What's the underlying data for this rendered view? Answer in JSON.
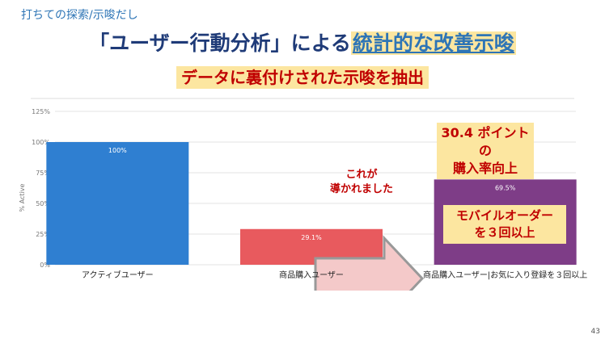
{
  "slide": {
    "subtitle": "打ちての探索/示唆だし",
    "headline_part1": "「ユーザー行動分析」による",
    "headline_part2": "統計的な改善示唆",
    "subheadline": "データに裏付けされた示唆を抽出",
    "page_number": "43"
  },
  "callouts": {
    "top_line1": "30.4 ポイントの",
    "top_line2": "購入率向上",
    "arrow_line1": "これが",
    "arrow_line2": "導かれました",
    "bottom_line1": "モバイルオーダー",
    "bottom_line2": "を３回以上"
  },
  "colors": {
    "bar1": "#2f7fd1",
    "bar2": "#e85a5e",
    "bar3": "#7e3d87",
    "arrow_fill": "#f4c9c9",
    "arrow_stroke": "#999999",
    "highlight": "#fce6a0",
    "accent_red": "#c00000"
  },
  "chart_data": {
    "type": "bar",
    "categories": [
      "アクティブユーザー",
      "商品購入ユーザー",
      "商品購入ユーザー|お気に入り登録を３回以上"
    ],
    "values": [
      100,
      29.1,
      69.5
    ],
    "data_labels": [
      "100%",
      "29.1%",
      "69.5%"
    ],
    "ylabel": "% Active",
    "yticks": [
      "0%",
      "25%",
      "50%",
      "75%",
      "100%",
      "125%"
    ],
    "ylim": [
      0,
      125
    ],
    "grid": true
  }
}
